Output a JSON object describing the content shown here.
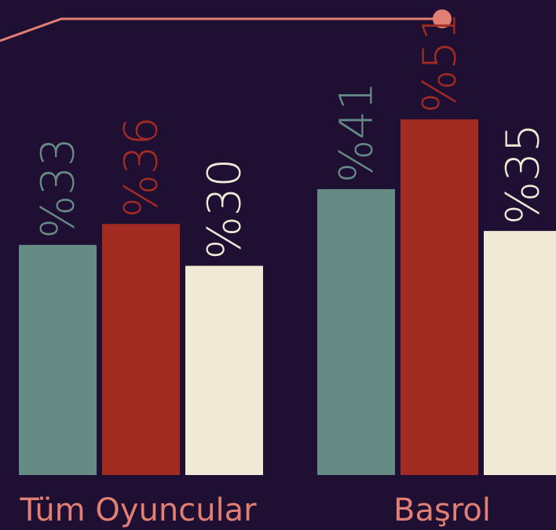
{
  "chart_data": {
    "type": "bar",
    "categories": [
      "Tüm Oyuncular",
      "Başrol"
    ],
    "series": [
      {
        "values": [
          33,
          41
        ]
      },
      {
        "values": [
          36,
          51
        ]
      },
      {
        "values": [
          30,
          35
        ]
      }
    ],
    "value_labels": [
      [
        "%33",
        "%36",
        "%30"
      ],
      [
        "%41",
        "%51",
        "%35"
      ]
    ],
    "ylim": [
      0,
      51
    ],
    "grid": false,
    "legend": "none",
    "colors": {
      "background": "#1e0f33",
      "series": [
        "#668a84",
        "#a22b22",
        "#efe9d5"
      ],
      "accent_line": "#e07f72",
      "category_text": "#e07f72"
    }
  }
}
